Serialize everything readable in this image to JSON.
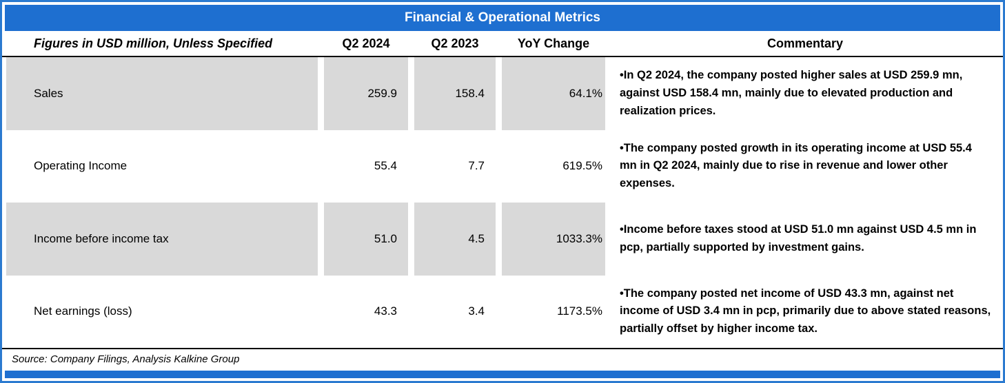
{
  "colors": {
    "accent_blue": "#1e6fd0",
    "row_shade_gray": "#d9d9d9",
    "border_blue": "#2b7ad0"
  },
  "chart_data": {
    "type": "table",
    "title": "Financial & Operational Metrics",
    "columns": [
      "Figures in USD million, Unless Specified",
      "Q2 2024",
      "Q2 2023",
      "YoY Change",
      "Commentary"
    ],
    "rows": [
      [
        "Sales",
        "259.9",
        "158.4",
        "64.1%",
        "•In Q2 2024, the company posted higher sales at USD 259.9 mn, against USD 158.4 mn, mainly due to elevated production and realization prices."
      ],
      [
        "Operating Income",
        "55.4",
        "7.7",
        "619.5%",
        "•The company posted growth in its operating income at USD 55.4 mn in Q2 2024, mainly due to rise in revenue and lower other expenses."
      ],
      [
        "Income before income tax",
        "51.0",
        "4.5",
        "1033.3%",
        "•Income before taxes stood at USD 51.0 mn against USD 4.5 mn in pcp, partially supported by investment gains."
      ],
      [
        "Net earnings (loss)",
        "43.3",
        "3.4",
        "1173.5%",
        "•The company posted net income of USD 43.3 mn, against net income of USD 3.4 mn in pcp, primarily due to above stated reasons, partially offset by higher income tax."
      ]
    ],
    "source": "Source: Company Filings, Analysis Kalkine Group"
  }
}
